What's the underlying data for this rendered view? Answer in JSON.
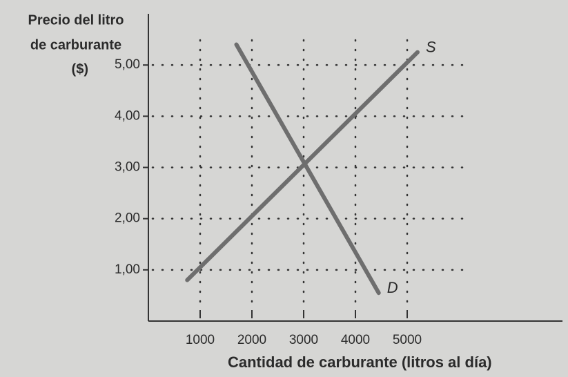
{
  "chart_data": {
    "type": "line",
    "ylabel": [
      "Precio del litro",
      "de carburante",
      "($)"
    ],
    "xlabel": "Cantidad de carburante (litros al día)",
    "xlim": [
      0,
      8000
    ],
    "xticks": [
      1000,
      2000,
      3000,
      4000,
      5000
    ],
    "ylim": [
      0,
      6
    ],
    "yticks": [
      {
        "value": 1,
        "label": "1,00"
      },
      {
        "value": 2,
        "label": "2,00"
      },
      {
        "value": 3,
        "label": "3,00"
      },
      {
        "value": 4,
        "label": "4,00"
      },
      {
        "value": 5,
        "label": "5,00"
      }
    ],
    "grid": true,
    "series": [
      {
        "name": "S",
        "color": "#6e6e6e",
        "x": [
          750,
          5200
        ],
        "values": [
          0.8,
          5.25
        ]
      },
      {
        "name": "D",
        "color": "#6e6e6e",
        "x": [
          1700,
          4450
        ],
        "values": [
          5.4,
          0.55
        ]
      }
    ]
  }
}
